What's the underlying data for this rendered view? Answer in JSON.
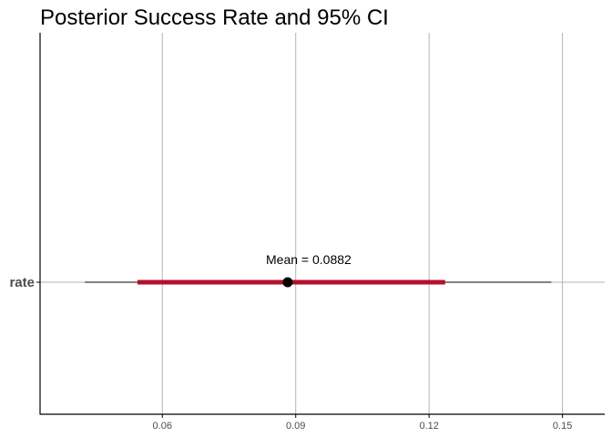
{
  "chart_data": {
    "type": "interval",
    "title": "Posterior Success Rate and 95% CI",
    "xlabel": "",
    "ylabel": "",
    "categories": [
      "rate"
    ],
    "xlim": [
      0.0325,
      0.1595
    ],
    "x_ticks": [
      0.06,
      0.09,
      0.12,
      0.15
    ],
    "x_tick_labels": [
      "0.06",
      "0.09",
      "0.12",
      "0.15"
    ],
    "grid": true,
    "estimate": {
      "category": "rate",
      "mean": 0.0882,
      "ci95": [
        0.0544,
        0.1236
      ],
      "outer_interval": [
        0.0426,
        0.1475
      ]
    },
    "annotation": "Mean = 0.0882",
    "colors": {
      "inner_interval": "#b40f2c",
      "outer_interval": "#000000",
      "point": "#000000",
      "grid": "#b3b3b3",
      "axis": "#000000"
    }
  }
}
